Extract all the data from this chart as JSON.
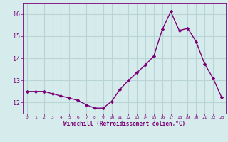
{
  "x": [
    0,
    1,
    2,
    3,
    4,
    5,
    6,
    7,
    8,
    9,
    10,
    11,
    12,
    13,
    14,
    15,
    16,
    17,
    18,
    19,
    20,
    21,
    22,
    23
  ],
  "y": [
    12.5,
    12.5,
    12.5,
    12.4,
    12.3,
    12.2,
    12.1,
    11.9,
    11.75,
    11.75,
    12.05,
    12.6,
    13.0,
    13.35,
    13.7,
    14.1,
    15.3,
    16.1,
    15.25,
    15.35,
    14.75,
    13.75,
    13.1,
    12.25
  ],
  "line_color": "#7b0077",
  "marker": "D",
  "marker_size": 2.2,
  "line_width": 1.0,
  "bg_color": "#d6ecec",
  "grid_color": "#b8d4d4",
  "xlabel": "Windchill (Refroidissement éolien,°C)",
  "xlabel_color": "#7b0077",
  "tick_color": "#7b0077",
  "ylim": [
    11.5,
    16.5
  ],
  "yticks": [
    12,
    13,
    14,
    15,
    16
  ],
  "xticks": [
    0,
    1,
    2,
    3,
    4,
    5,
    6,
    7,
    8,
    9,
    10,
    11,
    12,
    13,
    14,
    15,
    16,
    17,
    18,
    19,
    20,
    21,
    22,
    23
  ],
  "xlim": [
    -0.5,
    23.5
  ]
}
